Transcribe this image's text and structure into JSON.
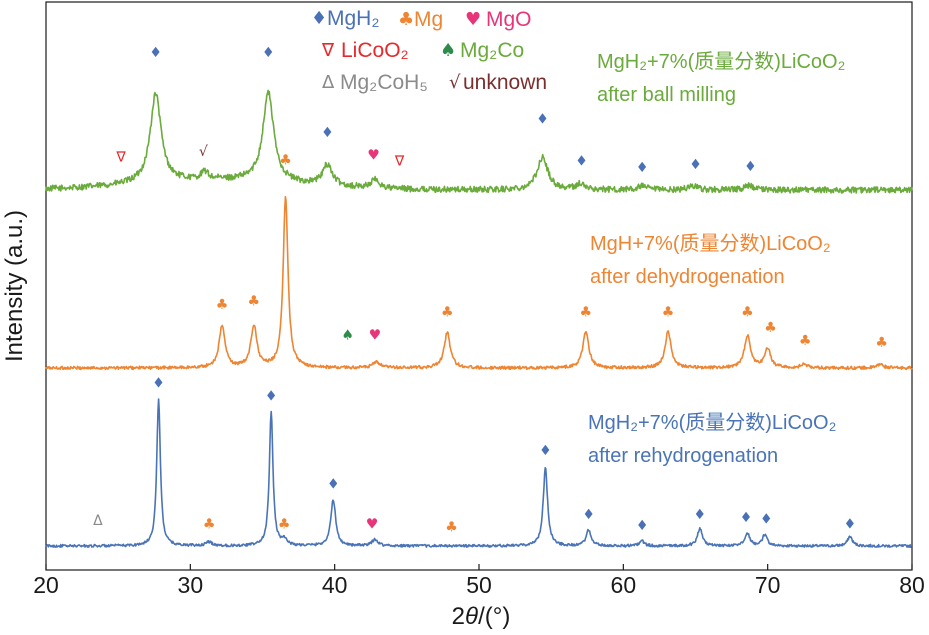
{
  "chart_data": {
    "type": "line",
    "title": "",
    "xlabel": "2θ/(°)",
    "ylabel": "Intensity (a.u.)",
    "xlim": [
      20,
      80
    ],
    "xticks": [
      "20",
      "30",
      "40",
      "50",
      "60",
      "70",
      "80"
    ],
    "colors": {
      "green": "#6aab3c",
      "orange": "#ee8533",
      "blue": "#4a74b7",
      "blue_marker": "#4a71b5",
      "mgo": "#e8357a",
      "licoo2": "#e8282b",
      "mg2co": "#2e8b4a",
      "mg2coh5": "#8b8b8b",
      "unknown": "#7a2e2e",
      "text": "#1a1a1a"
    },
    "legend": [
      {
        "symbol": "♦",
        "label": "MgH₂",
        "phase": "mgh2",
        "color": "#4a71b5"
      },
      {
        "symbol": "♣",
        "label": "Mg",
        "phase": "mg",
        "color": "#ee8533"
      },
      {
        "symbol": "♥",
        "label": "MgO",
        "phase": "mgo",
        "color": "#e8357a"
      },
      {
        "symbol": "∇",
        "label": "LiCoO₂",
        "phase": "licoo2",
        "color": "#e8282b"
      },
      {
        "symbol": "♠",
        "label": "Mg₂Co",
        "phase": "mg2co",
        "color": "#6aab3c"
      },
      {
        "symbol": "Δ",
        "label": "Mg₂CoH₅",
        "phase": "mg2coh5",
        "color": "#8b8b8b"
      },
      {
        "symbol": "√",
        "label": "unknown",
        "phase": "unknown",
        "color": "#7a2e2e"
      }
    ],
    "series": [
      {
        "name": "ball_milled",
        "label_line1": "MgH₂+7%(质量分数)LiCoO₂",
        "label_line2": "after ball milling",
        "color": "#6aab3c",
        "baseline": 0,
        "noise": 0.08,
        "peaks": [
          {
            "x": 27.6,
            "h": 2.35,
            "w": 0.45
          },
          {
            "x": 35.4,
            "h": 2.35,
            "w": 0.45
          },
          {
            "x": 39.5,
            "h": 0.55,
            "w": 0.4
          },
          {
            "x": 54.4,
            "h": 0.85,
            "w": 0.45
          },
          {
            "x": 31.0,
            "h": 0.2,
            "w": 0.3
          },
          {
            "x": 42.8,
            "h": 0.22,
            "w": 0.35
          },
          {
            "x": 57.0,
            "h": 0.15,
            "w": 0.35
          },
          {
            "x": 61.3,
            "h": 0.1,
            "w": 0.35
          },
          {
            "x": 64.8,
            "h": 0.12,
            "w": 0.35
          },
          {
            "x": 68.7,
            "h": 0.12,
            "w": 0.35
          }
        ],
        "markers": [
          {
            "x": 27.6,
            "y": 3.5,
            "phase": "mgh2"
          },
          {
            "x": 35.4,
            "y": 3.5,
            "phase": "mgh2"
          },
          {
            "x": 39.5,
            "y": 1.4,
            "phase": "mgh2"
          },
          {
            "x": 54.4,
            "y": 1.75,
            "phase": "mgh2"
          },
          {
            "x": 57.1,
            "y": 0.65,
            "phase": "mgh2"
          },
          {
            "x": 61.3,
            "y": 0.48,
            "phase": "mgh2"
          },
          {
            "x": 65.0,
            "y": 0.55,
            "phase": "mgh2"
          },
          {
            "x": 68.8,
            "y": 0.5,
            "phase": "mgh2"
          },
          {
            "x": 25.2,
            "y": 0.75,
            "phase": "licoo2"
          },
          {
            "x": 44.5,
            "y": 0.65,
            "phase": "licoo2"
          },
          {
            "x": 30.9,
            "y": 0.9,
            "phase": "unknown"
          },
          {
            "x": 42.7,
            "y": 0.8,
            "phase": "mgo"
          }
        ]
      },
      {
        "name": "dehydrogenated",
        "label_line1": "MgH+7%(质量分数)LiCoO₂",
        "label_line2": "after dehydrogenation",
        "color": "#ee8533",
        "baseline": 0,
        "noise": 0.04,
        "peaks": [
          {
            "x": 32.2,
            "h": 1.1,
            "w": 0.25
          },
          {
            "x": 34.4,
            "h": 1.1,
            "w": 0.25
          },
          {
            "x": 36.6,
            "h": 4.5,
            "w": 0.2
          },
          {
            "x": 47.8,
            "h": 0.95,
            "w": 0.25
          },
          {
            "x": 57.4,
            "h": 0.95,
            "w": 0.25
          },
          {
            "x": 63.1,
            "h": 0.95,
            "w": 0.25
          },
          {
            "x": 68.6,
            "h": 0.85,
            "w": 0.25
          },
          {
            "x": 70.0,
            "h": 0.5,
            "w": 0.25
          },
          {
            "x": 72.5,
            "h": 0.1,
            "w": 0.25
          },
          {
            "x": 77.8,
            "h": 0.1,
            "w": 0.25
          },
          {
            "x": 42.9,
            "h": 0.15,
            "w": 0.3
          }
        ],
        "markers": [
          {
            "x": 32.2,
            "y": 1.55,
            "phase": "mg"
          },
          {
            "x": 34.4,
            "y": 1.65,
            "phase": "mg"
          },
          {
            "x": 36.6,
            "y": 5.35,
            "phase": "mg"
          },
          {
            "x": 47.8,
            "y": 1.35,
            "phase": "mg"
          },
          {
            "x": 57.4,
            "y": 1.35,
            "phase": "mg"
          },
          {
            "x": 63.1,
            "y": 1.35,
            "phase": "mg"
          },
          {
            "x": 68.6,
            "y": 1.35,
            "phase": "mg"
          },
          {
            "x": 70.2,
            "y": 0.95,
            "phase": "mg"
          },
          {
            "x": 72.6,
            "y": 0.6,
            "phase": "mg"
          },
          {
            "x": 77.9,
            "y": 0.55,
            "phase": "mg"
          },
          {
            "x": 40.9,
            "y": 0.75,
            "phase": "mg2co"
          },
          {
            "x": 42.8,
            "y": 0.75,
            "phase": "mgo"
          }
        ]
      },
      {
        "name": "rehydrogenated",
        "label_line1": "MgH₂+7%(质量分数)LiCoO₂",
        "label_line2": "after rehydrogenation",
        "color": "#4a74b7",
        "baseline": 0,
        "noise": 0.04,
        "peaks": [
          {
            "x": 27.8,
            "h": 4.6,
            "w": 0.15
          },
          {
            "x": 35.6,
            "h": 4.2,
            "w": 0.15
          },
          {
            "x": 39.9,
            "h": 1.45,
            "w": 0.2
          },
          {
            "x": 54.6,
            "h": 2.45,
            "w": 0.18
          },
          {
            "x": 57.6,
            "h": 0.5,
            "w": 0.2
          },
          {
            "x": 61.3,
            "h": 0.15,
            "w": 0.2
          },
          {
            "x": 65.3,
            "h": 0.55,
            "w": 0.2
          },
          {
            "x": 68.6,
            "h": 0.4,
            "w": 0.2
          },
          {
            "x": 69.8,
            "h": 0.35,
            "w": 0.2
          },
          {
            "x": 75.7,
            "h": 0.3,
            "w": 0.2
          },
          {
            "x": 36.5,
            "h": 0.2,
            "w": 0.2
          },
          {
            "x": 42.8,
            "h": 0.2,
            "w": 0.25
          },
          {
            "x": 31.3,
            "h": 0.12,
            "w": 0.25
          }
        ],
        "markers": [
          {
            "x": 27.8,
            "y": 4.95,
            "phase": "mgh2"
          },
          {
            "x": 35.6,
            "y": 4.55,
            "phase": "mgh2"
          },
          {
            "x": 39.9,
            "y": 1.8,
            "phase": "mgh2"
          },
          {
            "x": 54.6,
            "y": 2.85,
            "phase": "mgh2"
          },
          {
            "x": 57.6,
            "y": 0.85,
            "phase": "mgh2"
          },
          {
            "x": 61.3,
            "y": 0.5,
            "phase": "mgh2"
          },
          {
            "x": 65.3,
            "y": 0.85,
            "phase": "mgh2"
          },
          {
            "x": 68.5,
            "y": 0.75,
            "phase": "mgh2"
          },
          {
            "x": 69.9,
            "y": 0.7,
            "phase": "mgh2"
          },
          {
            "x": 75.7,
            "y": 0.55,
            "phase": "mgh2"
          },
          {
            "x": 23.6,
            "y": 0.65,
            "phase": "mg2coh5"
          },
          {
            "x": 31.3,
            "y": 0.55,
            "phase": "mg"
          },
          {
            "x": 36.5,
            "y": 0.55,
            "phase": "mg"
          },
          {
            "x": 48.1,
            "y": 0.45,
            "phase": "mg"
          },
          {
            "x": 42.6,
            "y": 0.55,
            "phase": "mgo"
          }
        ]
      }
    ]
  }
}
